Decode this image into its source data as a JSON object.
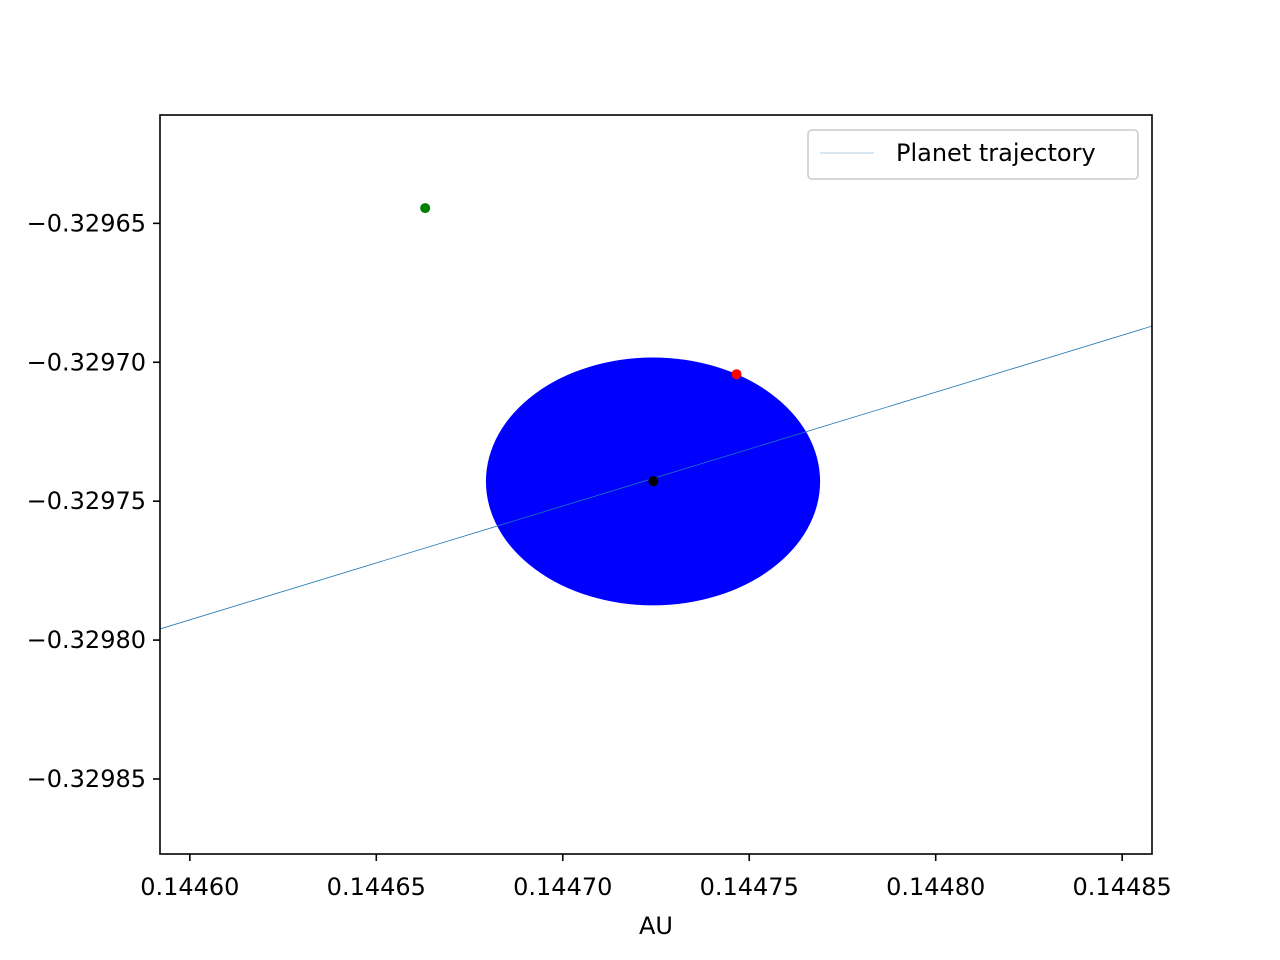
{
  "chart_data": {
    "type": "scatter",
    "xlabel": "AU",
    "ylabel": "",
    "xlim": [
      0.144592,
      0.144858
    ],
    "ylim": [
      -0.329877,
      -0.329611
    ],
    "x_ticks": [
      0.1446,
      0.14465,
      0.1447,
      0.14475,
      0.1448,
      0.14485
    ],
    "x_tick_labels": [
      "0.14460",
      "0.14465",
      "0.14470",
      "0.14475",
      "0.14480",
      "0.14485"
    ],
    "y_ticks": [
      -0.32965,
      -0.3297,
      -0.32975,
      -0.3298,
      -0.32985
    ],
    "y_tick_labels": [
      "−0.32965",
      "−0.32970",
      "−0.32975",
      "−0.32980",
      "−0.32985"
    ],
    "grid": false,
    "legend": {
      "placement": "top-right",
      "entries": [
        "Planet trajectory"
      ]
    },
    "series": [
      {
        "name": "Planet trajectory",
        "type": "line",
        "color": "#1f77b4",
        "x": [
          0.144592,
          0.144858
        ],
        "y": [
          -0.329796,
          -0.329687
        ]
      }
    ],
    "shapes": [
      {
        "kind": "ellipse",
        "color": "#0000ff",
        "cx": 0.1447242,
        "cy": -0.3297429,
        "rx": 4.48e-05,
        "ry": 4.46e-05
      }
    ],
    "points": [
      {
        "color": "#008000",
        "x": 0.1446631,
        "y": -0.3296445
      },
      {
        "color": "#ff0000",
        "x": 0.1447466,
        "y": -0.3297043
      },
      {
        "color": "#000000",
        "x": 0.1447243,
        "y": -0.3297428
      }
    ]
  }
}
